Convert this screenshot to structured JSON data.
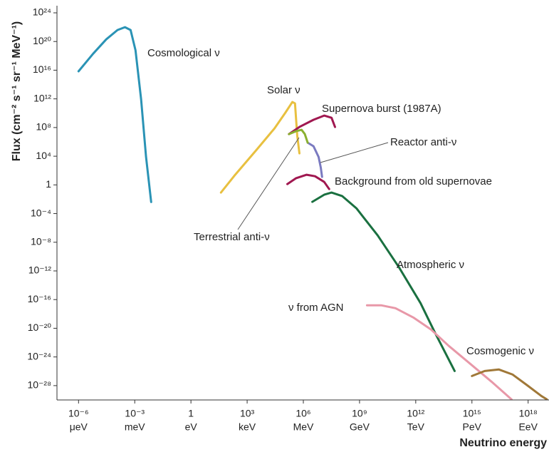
{
  "chart_data": {
    "type": "line",
    "x_label": "Neutrino energy",
    "y_label": "Flux (cm⁻² s⁻¹ sr⁻¹ MeV⁻¹)",
    "xscale": "log",
    "yscale": "log",
    "xlim": [
      1e-07,
      1e+19
    ],
    "ylim": [
      1e-30,
      1e+24
    ],
    "xticks": [
      {
        "value": 1e-06,
        "label": "10⁻⁶",
        "unit": "μeV"
      },
      {
        "value": 0.001,
        "label": "10⁻³",
        "unit": "meV"
      },
      {
        "value": 1,
        "label": "1",
        "unit": "eV"
      },
      {
        "value": 1000.0,
        "label": "10³",
        "unit": "keV"
      },
      {
        "value": 1000000.0,
        "label": "10⁶",
        "unit": "MeV"
      },
      {
        "value": 1000000000.0,
        "label": "10⁹",
        "unit": "GeV"
      },
      {
        "value": 1000000000000.0,
        "label": "10¹²",
        "unit": "TeV"
      },
      {
        "value": 1000000000000000.0,
        "label": "10¹⁵",
        "unit": "PeV"
      },
      {
        "value": 1e+18,
        "label": "10¹⁸",
        "unit": "EeV"
      }
    ],
    "yticks": [
      {
        "value": 1e+24,
        "label": "10²⁴"
      },
      {
        "value": 1e+20,
        "label": "10²⁰"
      },
      {
        "value": 1e+16,
        "label": "10¹⁶"
      },
      {
        "value": 1000000000000.0,
        "label": "10¹²"
      },
      {
        "value": 100000000.0,
        "label": "10⁸"
      },
      {
        "value": 10000.0,
        "label": "10⁴"
      },
      1,
      {
        "value": 0.0001,
        "label": "10⁻⁴"
      },
      {
        "value": 1e-08,
        "label": "10⁻⁸"
      },
      {
        "value": 1e-12,
        "label": "10⁻¹²"
      },
      {
        "value": 1e-16,
        "label": "10⁻¹⁶"
      },
      {
        "value": 1e-20,
        "label": "10⁻²⁰"
      },
      {
        "value": 1e-24,
        "label": "10⁻²⁴"
      },
      {
        "value": 1e-28,
        "label": "10⁻²⁸"
      }
    ],
    "series": [
      {
        "name": "Cosmological ν",
        "color": "#2a93b5",
        "x": [
          1e-06,
          6e-06,
          3e-05,
          0.00012,
          0.0003,
          0.0006,
          0.0011,
          0.0022,
          0.004,
          0.0075
        ],
        "values": [
          7000000000000000.0,
          2e+18,
          2e+20,
          4e+21,
          1e+22,
          4e+21,
          6e+18,
          800000000000.0,
          8000.0,
          0.004
        ]
      },
      {
        "name": "Solar ν",
        "color": "#e8c040",
        "x": [
          40,
          230,
          3200.0,
          29000.0,
          110000.0,
          260000.0,
          360000.0,
          470000.0,
          620000.0
        ],
        "values": [
          0.085,
          26,
          80000.0,
          76000000.0,
          12000000000.0,
          360000000000.0,
          230000000000.0,
          7800000.0,
          25000.0
        ]
      },
      {
        "name": "Supernova burst (1987A)",
        "color": "#a01850",
        "x": [
          170000.0,
          620000.0,
          3500000.0,
          13000000.0,
          32000000.0,
          49000000.0
        ],
        "values": [
          12000000.0,
          120000000.0,
          1200000000.0,
          4700000000.0,
          2300000000.0,
          120000000.0
        ]
      },
      {
        "name": "Reactor anti-ν",
        "color": "#7a7ac0",
        "x": [
          1700000.0,
          3500000.0,
          6500000.0,
          8500000.0,
          10000000.0
        ],
        "values": [
          780000.0,
          250000.0,
          8000.0,
          260,
          13
        ]
      },
      {
        "name": "Background from old supernovae",
        "color": "#a01850",
        "x": [
          140000.0,
          400000.0,
          1500000.0,
          4200000.0,
          13000000.0,
          24000000.0
        ],
        "values": [
          1.3,
          8.3,
          26,
          16,
          2.6,
          0.26
        ]
      },
      {
        "name": "Terrestrial anti-ν",
        "color": "#8ab030",
        "x": [
          170000.0,
          400000.0,
          800000.0,
          1200000.0,
          1700000.0
        ],
        "values": [
          12000000.0,
          30000000.0,
          48000000.0,
          12000000.0,
          780000.0
        ]
      },
      {
        "name": "Atmospheric ν",
        "color": "#1a7040",
        "x": [
          3000000.0,
          13000000.0,
          32000000.0,
          120000000.0,
          680000000.0,
          9300000000.0,
          130000000000.0,
          1800000000000.0,
          10000000000000.0,
          120000000000000.0
        ],
        "values": [
          0.0043,
          0.043,
          0.085,
          0.027,
          0.00055,
          9e-08,
          3e-12,
          3.2e-17,
          3.3e-21,
          1.1e-26
        ]
      },
      {
        "name": "ν from AGN",
        "color": "#e898a8",
        "x": [
          2500000000.0,
          14000000000.0,
          83000000000.0,
          740000000000.0,
          6600000000000.0,
          59000000000000.0,
          810000000000000.0,
          1.1e+16,
          1.3e+17
        ],
        "values": [
          1.6e-17,
          1.6e-17,
          6.3e-18,
          3.2e-19,
          6.6e-21,
          3.4e-23,
          1.1e-25,
          3.6e-28,
          1.2e-30
        ]
      },
      {
        "name": "Cosmogenic ν",
        "color": "#a07838",
        "x": [
          1000000000000000.0,
          4800000000000000.0,
          2.7e+16,
          1.5e+17,
          9e+17,
          5e+18,
          1e+19
        ],
        "values": [
          2.2e-27,
          1.1e-26,
          1.8e-26,
          3.5e-27,
          1.1e-28,
          3.7e-30,
          1.2e-30
        ]
      }
    ]
  }
}
